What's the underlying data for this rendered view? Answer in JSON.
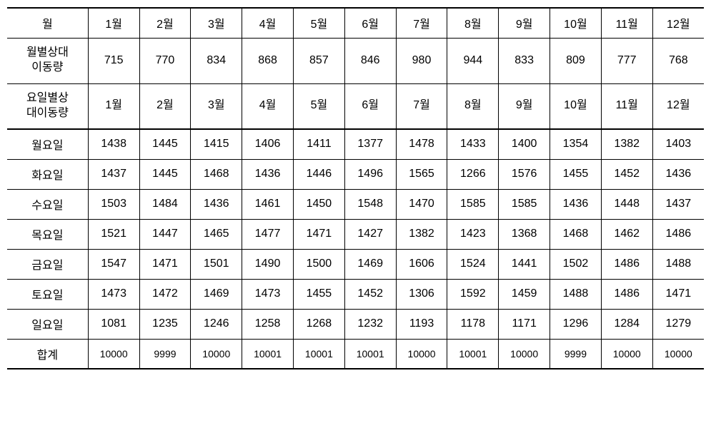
{
  "months_header_label": "월",
  "months": [
    "1월",
    "2월",
    "3월",
    "4월",
    "5월",
    "6월",
    "7월",
    "8월",
    "9월",
    "10월",
    "11월",
    "12월"
  ],
  "monthly_relative_label_line1": "월별상대",
  "monthly_relative_label_line2": "이동량",
  "monthly_relative_values": [
    "715",
    "770",
    "834",
    "868",
    "857",
    "846",
    "980",
    "944",
    "833",
    "809",
    "777",
    "768"
  ],
  "dayofweek_header_label_line1": "요일별상",
  "dayofweek_header_label_line2": "대이동량",
  "dayofweek_months": [
    "1월",
    "2월",
    "3월",
    "4월",
    "5월",
    "6월",
    "7월",
    "8월",
    "9월",
    "10월",
    "11월",
    "12월"
  ],
  "days": {
    "mon": {
      "label": "월요일",
      "values": [
        "1438",
        "1445",
        "1415",
        "1406",
        "1411",
        "1377",
        "1478",
        "1433",
        "1400",
        "1354",
        "1382",
        "1403"
      ]
    },
    "tue": {
      "label": "화요일",
      "values": [
        "1437",
        "1445",
        "1468",
        "1436",
        "1446",
        "1496",
        "1565",
        "1266",
        "1576",
        "1455",
        "1452",
        "1436"
      ]
    },
    "wed": {
      "label": "수요일",
      "values": [
        "1503",
        "1484",
        "1436",
        "1461",
        "1450",
        "1548",
        "1470",
        "1585",
        "1585",
        "1436",
        "1448",
        "1437"
      ]
    },
    "thu": {
      "label": "목요일",
      "values": [
        "1521",
        "1447",
        "1465",
        "1477",
        "1471",
        "1427",
        "1382",
        "1423",
        "1368",
        "1468",
        "1462",
        "1486"
      ]
    },
    "fri": {
      "label": "금요일",
      "values": [
        "1547",
        "1471",
        "1501",
        "1490",
        "1500",
        "1469",
        "1606",
        "1524",
        "1441",
        "1502",
        "1486",
        "1488"
      ]
    },
    "sat": {
      "label": "토요일",
      "values": [
        "1473",
        "1472",
        "1469",
        "1473",
        "1455",
        "1452",
        "1306",
        "1592",
        "1459",
        "1488",
        "1486",
        "1471"
      ]
    },
    "sun": {
      "label": "일요일",
      "values": [
        "1081",
        "1235",
        "1246",
        "1258",
        "1268",
        "1232",
        "1193",
        "1178",
        "1171",
        "1296",
        "1284",
        "1279"
      ]
    }
  },
  "sum_label": "합계",
  "sum_values": [
    "10000",
    "9999",
    "10000",
    "10001",
    "10001",
    "10001",
    "10000",
    "10001",
    "10000",
    "9999",
    "10000",
    "10000"
  ],
  "styling": {
    "border_color": "#000000",
    "background_color": "#ffffff",
    "font_family": "Malgun Gothic",
    "cell_font_size": 16,
    "sum_font_size": 14,
    "thick_border_width": 2,
    "thin_border_width": 1,
    "col_header_width": 114,
    "col_data_width": 72,
    "tall_row_height": 64,
    "normal_row_height": 42,
    "short_row_height": 36
  }
}
